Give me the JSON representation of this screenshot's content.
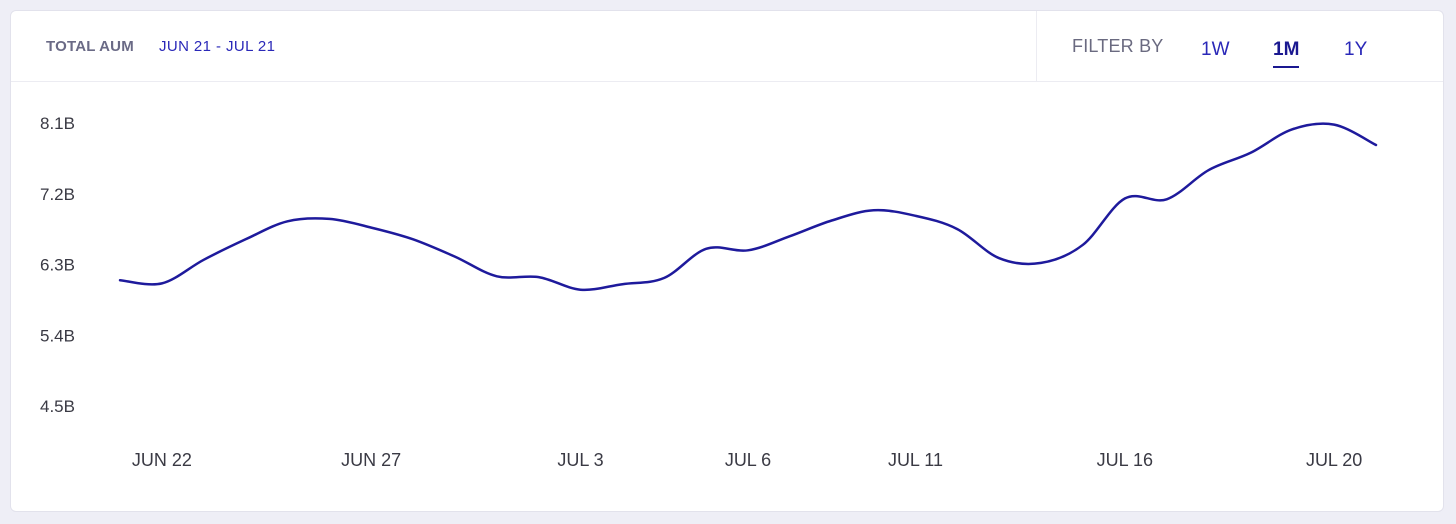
{
  "header": {
    "title_label": "TOTAL AUM",
    "title_range": "JUN 21 - JUL 21"
  },
  "filter": {
    "label": "FILTER BY",
    "options": [
      "1W",
      "1M",
      "1Y"
    ],
    "selected": "1M"
  },
  "colors": {
    "line": "#1e1a9c",
    "accent": "#2a28b8"
  },
  "chart_data": {
    "type": "line",
    "title": "",
    "xlabel": "",
    "ylabel": "",
    "ylim": [
      4.5,
      8.1
    ],
    "yticks": [
      "8.1B",
      "7.2B",
      "6.3B",
      "5.4B",
      "4.5B"
    ],
    "ytick_values": [
      8.1,
      7.2,
      6.3,
      5.4,
      4.5
    ],
    "xticks": [
      {
        "label": "JUN 22",
        "x": 1
      },
      {
        "label": "JUN 27",
        "x": 6
      },
      {
        "label": "JUL 3",
        "x": 11
      },
      {
        "label": "JUL 6",
        "x": 15
      },
      {
        "label": "JUL 11",
        "x": 19
      },
      {
        "label": "JUL 16",
        "x": 24
      },
      {
        "label": "JUL 20",
        "x": 29
      }
    ],
    "xlim": [
      0,
      30
    ],
    "grid": false,
    "series": [
      {
        "name": "",
        "x": [
          0,
          1,
          2,
          3,
          4,
          5,
          6,
          7,
          8,
          9,
          10,
          11,
          12,
          13,
          14,
          15,
          16,
          17,
          18,
          19,
          20,
          21,
          22,
          23,
          24,
          25,
          26,
          27,
          28,
          29,
          30
        ],
        "values": [
          6.1,
          6.06,
          6.36,
          6.62,
          6.85,
          6.88,
          6.77,
          6.62,
          6.4,
          6.15,
          6.14,
          5.98,
          6.05,
          6.13,
          6.5,
          6.48,
          6.66,
          6.86,
          6.99,
          6.92,
          6.75,
          6.38,
          6.32,
          6.55,
          7.14,
          7.13,
          7.5,
          7.72,
          8.02,
          8.08,
          7.82
        ]
      }
    ]
  }
}
